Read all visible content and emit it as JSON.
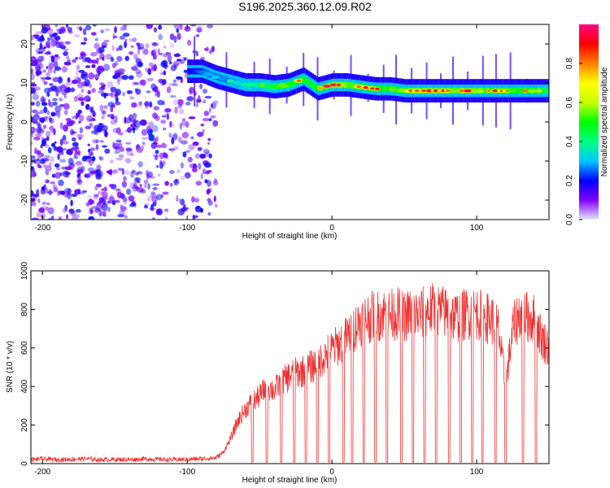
{
  "title": "S196.2025.360.12.09.R02",
  "chart_data": [
    {
      "type": "heatmap",
      "xlabel": "Height of straight line (km)",
      "ylabel": "Frequency (Hz)",
      "xlim": [
        -208,
        150
      ],
      "ylim": [
        -25,
        25
      ],
      "xticks": [
        -200,
        -100,
        0,
        100
      ],
      "xtick_labels": [
        "-200",
        "-100",
        "0",
        "100"
      ],
      "yticks": [
        -20,
        -10,
        0,
        10,
        20
      ],
      "ytick_labels": [
        "-20",
        "-10",
        "0",
        "10",
        "20"
      ],
      "colorbar": {
        "label": "Normalized spectral amplitude",
        "range": [
          0,
          1
        ],
        "ticks": [
          0.0,
          0.2,
          0.4,
          0.6,
          0.8
        ],
        "tick_labels": [
          "0.0",
          "0.2",
          "0.4",
          "0.6",
          "0.8"
        ],
        "colors": [
          "#e6e6fa",
          "#8000ff",
          "#0000ff",
          "#00c8ff",
          "#00ff80",
          "#00ff00",
          "#c8ff00",
          "#ffff00",
          "#ff8000",
          "#ff0000",
          "#ff0080"
        ]
      },
      "noise_region": {
        "x_range": [
          -208,
          -80
        ],
        "f_range": [
          -25,
          25
        ],
        "amplitude": 0.1
      },
      "signal_band": [
        {
          "x": -100,
          "f": 13.0,
          "amp": 0.25
        },
        {
          "x": -90,
          "f": 13.0,
          "amp": 0.35
        },
        {
          "x": -80,
          "f": 11.5,
          "amp": 0.4
        },
        {
          "x": -70,
          "f": 10.5,
          "amp": 0.45
        },
        {
          "x": -60,
          "f": 9.5,
          "amp": 0.5
        },
        {
          "x": -50,
          "f": 9.5,
          "amp": 0.6
        },
        {
          "x": -40,
          "f": 9.0,
          "amp": 0.7
        },
        {
          "x": -30,
          "f": 9.5,
          "amp": 0.75
        },
        {
          "x": -20,
          "f": 11.0,
          "amp": 0.8
        },
        {
          "x": -10,
          "f": 8.5,
          "amp": 0.8
        },
        {
          "x": 0,
          "f": 9.5,
          "amp": 0.95
        },
        {
          "x": 10,
          "f": 9.5,
          "amp": 0.9
        },
        {
          "x": 20,
          "f": 9.0,
          "amp": 0.85
        },
        {
          "x": 30,
          "f": 8.5,
          "amp": 0.85
        },
        {
          "x": 40,
          "f": 8.5,
          "amp": 0.8
        },
        {
          "x": 50,
          "f": 8.0,
          "amp": 0.85
        },
        {
          "x": 60,
          "f": 8.0,
          "amp": 0.9
        },
        {
          "x": 70,
          "f": 8.0,
          "amp": 0.9
        },
        {
          "x": 80,
          "f": 8.0,
          "amp": 0.9
        },
        {
          "x": 90,
          "f": 8.0,
          "amp": 0.9
        },
        {
          "x": 100,
          "f": 8.0,
          "amp": 0.9
        },
        {
          "x": 110,
          "f": 8.0,
          "amp": 0.85
        },
        {
          "x": 120,
          "f": 8.0,
          "amp": 0.85
        },
        {
          "x": 130,
          "f": 8.0,
          "amp": 0.8
        },
        {
          "x": 140,
          "f": 8.0,
          "amp": 0.8
        },
        {
          "x": 150,
          "f": 8.0,
          "amp": 0.7
        }
      ]
    },
    {
      "type": "line",
      "xlabel": "Height of straight line (km)",
      "ylabel": "SNR (10 * v/v)",
      "xlim": [
        -208,
        150
      ],
      "ylim": [
        0,
        1000
      ],
      "xticks": [
        -200,
        -100,
        0,
        100
      ],
      "xtick_labels": [
        "-200",
        "-100",
        "0",
        "100"
      ],
      "yticks": [
        0,
        200,
        400,
        600,
        800,
        1000
      ],
      "ytick_labels": [
        "0",
        "200",
        "400",
        "600",
        "800",
        "1000"
      ],
      "series": [
        {
          "name": "SNR",
          "color": "#ee3333",
          "x": [
            -208,
            -200,
            -190,
            -180,
            -170,
            -160,
            -150,
            -140,
            -130,
            -120,
            -110,
            -100,
            -90,
            -80,
            -75,
            -70,
            -65,
            -60,
            -55,
            -50,
            -45,
            -40,
            -35,
            -30,
            -25,
            -20,
            -15,
            -10,
            -5,
            0,
            5,
            10,
            15,
            20,
            25,
            30,
            35,
            40,
            45,
            50,
            55,
            60,
            65,
            70,
            75,
            80,
            85,
            90,
            95,
            100,
            105,
            110,
            115,
            120,
            125,
            130,
            135,
            140,
            145,
            150
          ],
          "values": [
            20,
            25,
            20,
            22,
            25,
            20,
            22,
            20,
            25,
            22,
            20,
            22,
            25,
            30,
            60,
            130,
            220,
            280,
            320,
            350,
            400,
            380,
            420,
            450,
            470,
            480,
            500,
            520,
            560,
            590,
            620,
            650,
            700,
            740,
            760,
            760,
            780,
            770,
            780,
            760,
            780,
            770,
            790,
            800,
            790,
            780,
            760,
            770,
            780,
            780,
            760,
            750,
            700,
            400,
            700,
            780,
            760,
            750,
            650,
            600
          ]
        }
      ],
      "dropouts_x": [
        -55,
        -45,
        -35,
        -26,
        -18,
        -10,
        -2,
        8,
        14,
        22,
        30,
        38,
        48,
        56,
        64,
        72,
        81,
        89,
        97,
        104,
        113,
        120,
        132,
        141
      ]
    }
  ]
}
